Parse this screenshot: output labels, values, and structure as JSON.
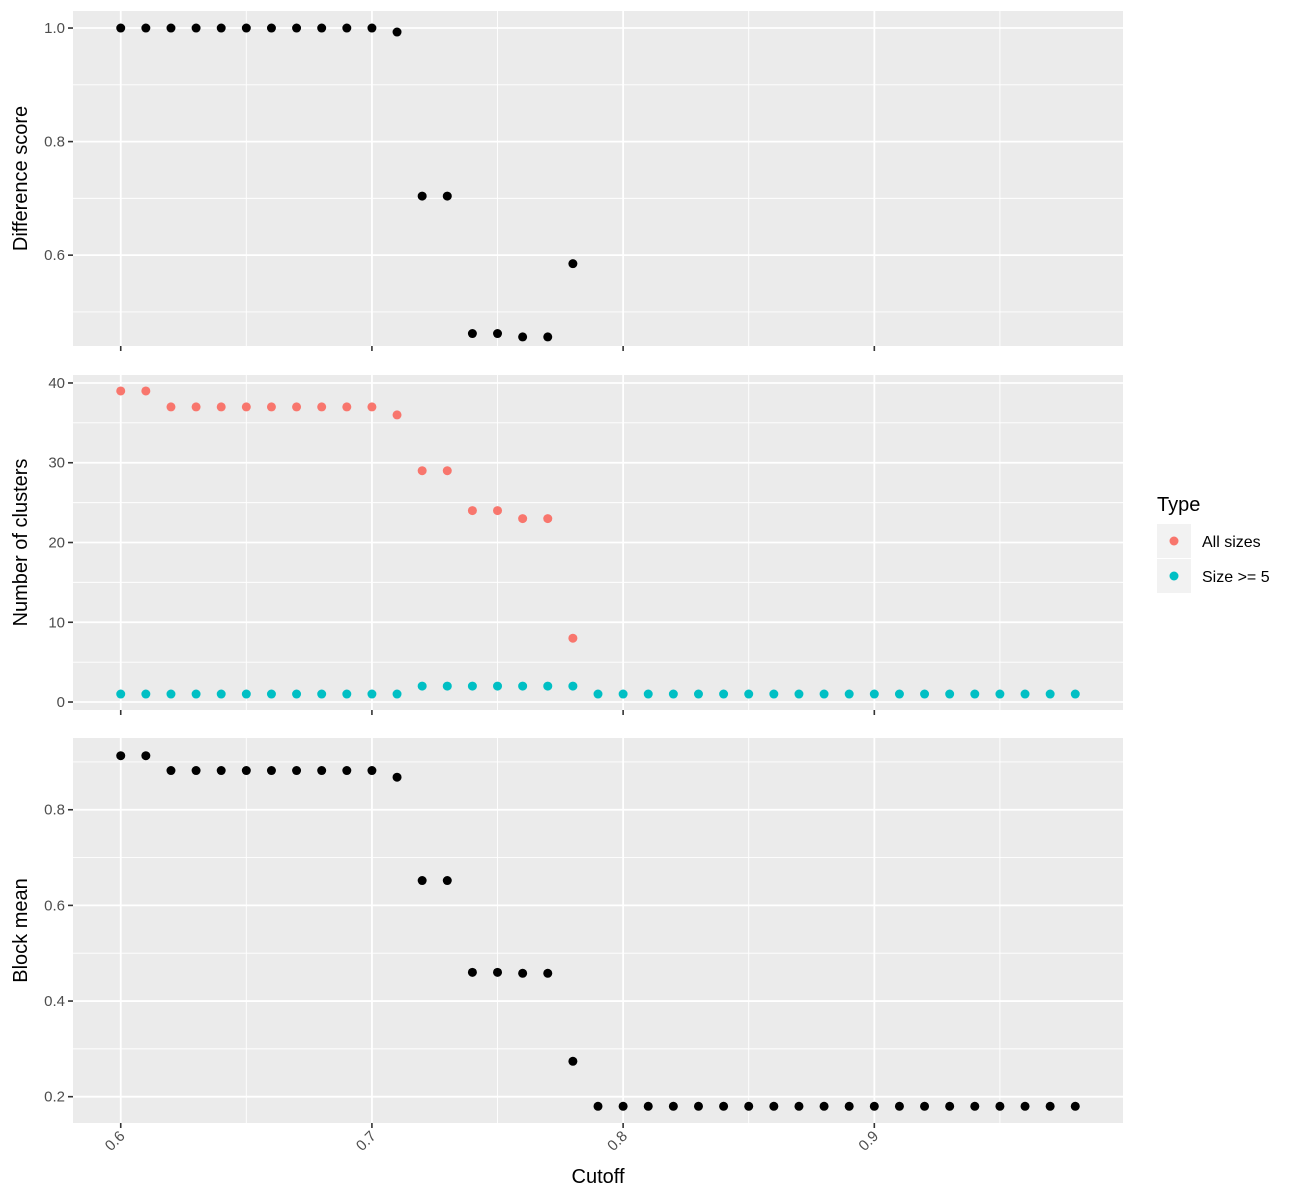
{
  "chart_data": [
    {
      "type": "scatter",
      "ylabel": "Difference score",
      "ylim": [
        0.44,
        1.03
      ],
      "yticks": [
        0.6,
        0.8,
        1.0
      ],
      "yticklabels": [
        "0.6",
        "0.8",
        "1.0"
      ],
      "series": [
        {
          "color": "#000000",
          "x": [
            0.6,
            0.61,
            0.62,
            0.63,
            0.64,
            0.65,
            0.66,
            0.67,
            0.68,
            0.69,
            0.7,
            0.71,
            0.72,
            0.73,
            0.74,
            0.75,
            0.76,
            0.77,
            0.78
          ],
          "y": [
            1.0,
            1.0,
            1.0,
            1.0,
            1.0,
            1.0,
            1.0,
            1.0,
            1.0,
            1.0,
            1.0,
            0.993,
            0.704,
            0.704,
            0.462,
            0.462,
            0.456,
            0.456,
            0.585
          ]
        }
      ],
      "grid": true
    },
    {
      "type": "scatter",
      "ylabel": "Number of clusters",
      "ylim": [
        -1,
        41
      ],
      "yticks": [
        0,
        10,
        20,
        30,
        40
      ],
      "yticklabels": [
        "0",
        "10",
        "20",
        "30",
        "40"
      ],
      "series": [
        {
          "name": "All sizes",
          "color": "#F8766D",
          "x": [
            0.6,
            0.61,
            0.62,
            0.63,
            0.64,
            0.65,
            0.66,
            0.67,
            0.68,
            0.69,
            0.7,
            0.71,
            0.72,
            0.73,
            0.74,
            0.75,
            0.76,
            0.77,
            0.78
          ],
          "y": [
            39,
            39,
            37,
            37,
            37,
            37,
            37,
            37,
            37,
            37,
            37,
            36,
            29,
            29,
            24,
            24,
            23,
            23,
            8
          ]
        },
        {
          "name": "Size >= 5",
          "color": "#00BFC4",
          "x": [
            0.6,
            0.61,
            0.62,
            0.63,
            0.64,
            0.65,
            0.66,
            0.67,
            0.68,
            0.69,
            0.7,
            0.71,
            0.72,
            0.73,
            0.74,
            0.75,
            0.76,
            0.77,
            0.78,
            0.79,
            0.8,
            0.81,
            0.82,
            0.83,
            0.84,
            0.85,
            0.86,
            0.87,
            0.88,
            0.89,
            0.9,
            0.91,
            0.92,
            0.93,
            0.94,
            0.95,
            0.96,
            0.97,
            0.98
          ],
          "y": [
            1,
            1,
            1,
            1,
            1,
            1,
            1,
            1,
            1,
            1,
            1,
            1,
            2,
            2,
            2,
            2,
            2,
            2,
            2,
            1,
            1,
            1,
            1,
            1,
            1,
            1,
            1,
            1,
            1,
            1,
            1,
            1,
            1,
            1,
            1,
            1,
            1,
            1,
            1
          ]
        }
      ],
      "grid": true
    },
    {
      "type": "scatter",
      "ylabel": "Block mean",
      "xlabel": "Cutoff",
      "ylim": [
        0.145,
        0.95
      ],
      "yticks": [
        0.2,
        0.4,
        0.6,
        0.8
      ],
      "yticklabels": [
        "0.2",
        "0.4",
        "0.6",
        "0.8"
      ],
      "series": [
        {
          "color": "#000000",
          "x": [
            0.6,
            0.61,
            0.62,
            0.63,
            0.64,
            0.65,
            0.66,
            0.67,
            0.68,
            0.69,
            0.7,
            0.71,
            0.72,
            0.73,
            0.74,
            0.75,
            0.76,
            0.77,
            0.78,
            0.79,
            0.8,
            0.81,
            0.82,
            0.83,
            0.84,
            0.85,
            0.86,
            0.87,
            0.88,
            0.89,
            0.9,
            0.91,
            0.92,
            0.93,
            0.94,
            0.95,
            0.96,
            0.97,
            0.98
          ],
          "y": [
            0.913,
            0.913,
            0.882,
            0.882,
            0.882,
            0.882,
            0.882,
            0.882,
            0.882,
            0.882,
            0.882,
            0.868,
            0.652,
            0.652,
            0.46,
            0.46,
            0.458,
            0.458,
            0.274,
            0.18,
            0.18,
            0.18,
            0.18,
            0.18,
            0.18,
            0.18,
            0.18,
            0.18,
            0.18,
            0.18,
            0.18,
            0.18,
            0.18,
            0.18,
            0.18,
            0.18,
            0.18,
            0.18,
            0.18
          ]
        }
      ],
      "grid": true
    }
  ],
  "xaxis": {
    "label": "Cutoff",
    "xlim": [
      0.581,
      0.999
    ],
    "ticks": [
      0.6,
      0.7,
      0.8,
      0.9
    ],
    "ticklabels": [
      "0.6",
      "0.7",
      "0.8",
      "0.9"
    ],
    "tick_rotation_deg": -45
  },
  "legend": {
    "title": "Type",
    "placement": "right",
    "entries": [
      {
        "label": "All sizes",
        "color": "#F8766D"
      },
      {
        "label": "Size >= 5",
        "color": "#00BFC4"
      }
    ]
  },
  "colors": {
    "panel_background": "#EBEBEB",
    "grid": "#FFFFFF",
    "point_default": "#000000"
  }
}
